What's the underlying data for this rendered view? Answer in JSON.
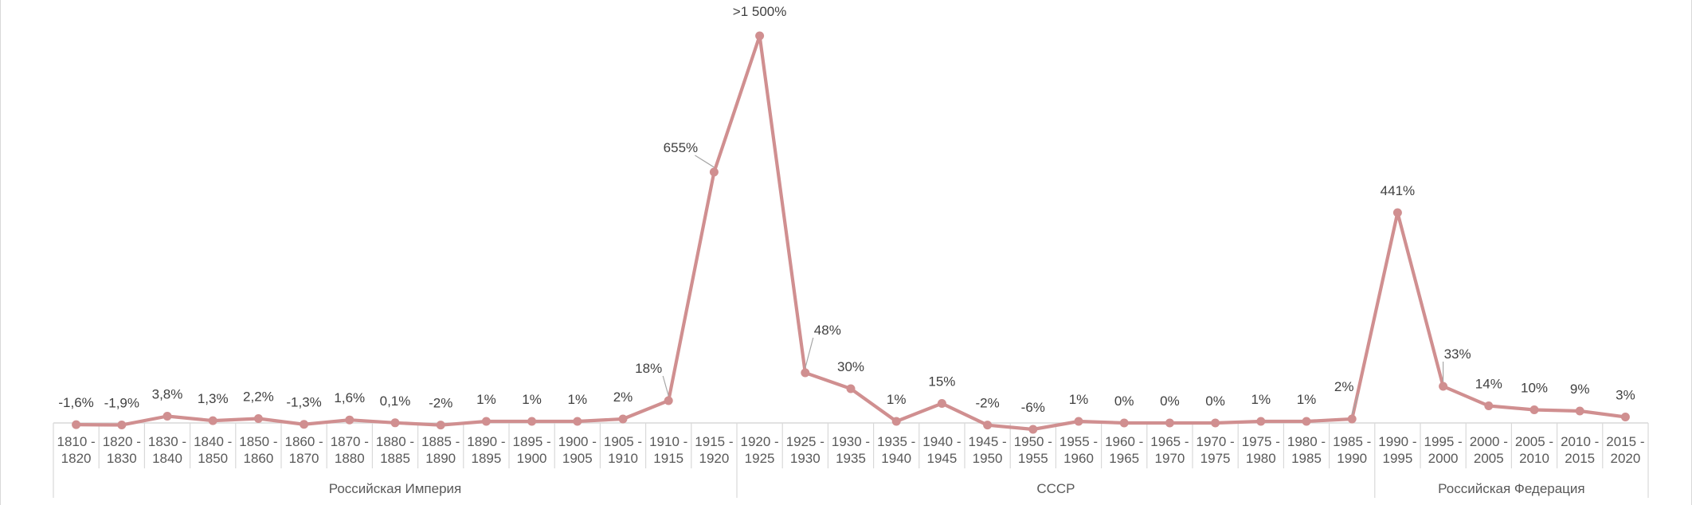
{
  "chart_data": {
    "type": "line",
    "title": "",
    "xlabel": "",
    "ylabel": "",
    "color": "#d08f90",
    "grid": false,
    "legend": "none",
    "categories": [
      [
        "1810 -",
        "1820"
      ],
      [
        "1820 -",
        "1830"
      ],
      [
        "1830 -",
        "1840"
      ],
      [
        "1840 -",
        "1850"
      ],
      [
        "1850 -",
        "1860"
      ],
      [
        "1860 -",
        "1870"
      ],
      [
        "1870 -",
        "1880"
      ],
      [
        "1880 -",
        "1885"
      ],
      [
        "1885 -",
        "1890"
      ],
      [
        "1890 -",
        "1895"
      ],
      [
        "1895 -",
        "1900"
      ],
      [
        "1900 -",
        "1905"
      ],
      [
        "1905 -",
        "1910"
      ],
      [
        "1910 -",
        "1915"
      ],
      [
        "1915 -",
        "1920"
      ],
      [
        "1920 -",
        "1925"
      ],
      [
        "1925 -",
        "1930"
      ],
      [
        "1930 -",
        "1935"
      ],
      [
        "1935 -",
        "1940"
      ],
      [
        "1940 -",
        "1945"
      ],
      [
        "1945 -",
        "1950"
      ],
      [
        "1950 -",
        "1955"
      ],
      [
        "1955 -",
        "1960"
      ],
      [
        "1960 -",
        "1965"
      ],
      [
        "1965 -",
        "1970"
      ],
      [
        "1970 -",
        "1975"
      ],
      [
        "1975 -",
        "1980"
      ],
      [
        "1980 -",
        "1985"
      ],
      [
        "1985 -",
        "1990"
      ],
      [
        "1990 -",
        "1995"
      ],
      [
        "1995 -",
        "2000"
      ],
      [
        "2000 -",
        "2005"
      ],
      [
        "2005 -",
        "2010"
      ],
      [
        "2010 -",
        "2015"
      ],
      [
        "2015 -",
        "2020"
      ]
    ],
    "values": [
      -1.6,
      -1.9,
      3.8,
      1.3,
      2.2,
      -1.3,
      1.6,
      0.1,
      -2,
      1,
      1,
      1,
      2,
      18,
      655,
      1500,
      48,
      30,
      1,
      15,
      -2,
      -6,
      1,
      0,
      0,
      0,
      1,
      1,
      2,
      441,
      33,
      14,
      10,
      9,
      3
    ],
    "data_labels": [
      "-1,6%",
      "-1,9%",
      "3,8%",
      "1,3%",
      "2,2%",
      "-1,3%",
      "1,6%",
      "0,1%",
      "-2%",
      "1%",
      "1%",
      "1%",
      "2%",
      "18%",
      "655%",
      ">1 500%",
      "48%",
      "30%",
      "1%",
      "15%",
      "-2%",
      "-6%",
      "1%",
      "0%",
      "0%",
      "0%",
      "1%",
      "1%",
      "2%",
      "441%",
      "33%",
      "14%",
      "10%",
      "9%",
      "3%"
    ],
    "label_offsets": [
      [
        0,
        -22
      ],
      [
        0,
        -22
      ],
      [
        0,
        -22
      ],
      [
        0,
        -22
      ],
      [
        0,
        -22
      ],
      [
        0,
        -22
      ],
      [
        0,
        -22
      ],
      [
        0,
        -22
      ],
      [
        0,
        -22
      ],
      [
        0,
        -22
      ],
      [
        0,
        -22
      ],
      [
        0,
        -22
      ],
      [
        0,
        -22
      ],
      [
        -25,
        -35
      ],
      [
        -42,
        -25
      ],
      [
        0,
        -25
      ],
      [
        28,
        -48
      ],
      [
        0,
        -22
      ],
      [
        0,
        -22
      ],
      [
        0,
        -22
      ],
      [
        0,
        -22
      ],
      [
        0,
        -22
      ],
      [
        0,
        -22
      ],
      [
        0,
        -22
      ],
      [
        0,
        -22
      ],
      [
        0,
        -22
      ],
      [
        0,
        -22
      ],
      [
        0,
        -22
      ],
      [
        -10,
        -35
      ],
      [
        0,
        -22
      ],
      [
        18,
        -35
      ],
      [
        0,
        -22
      ],
      [
        0,
        -22
      ],
      [
        0,
        -22
      ],
      [
        0,
        -22
      ]
    ],
    "groups": [
      {
        "name": "Российская Империя",
        "from": 0,
        "to": 14
      },
      {
        "name": "СССР",
        "from": 15,
        "to": 28
      },
      {
        "name": "Российская Федерация",
        "from": 29,
        "to": 34
      }
    ]
  }
}
